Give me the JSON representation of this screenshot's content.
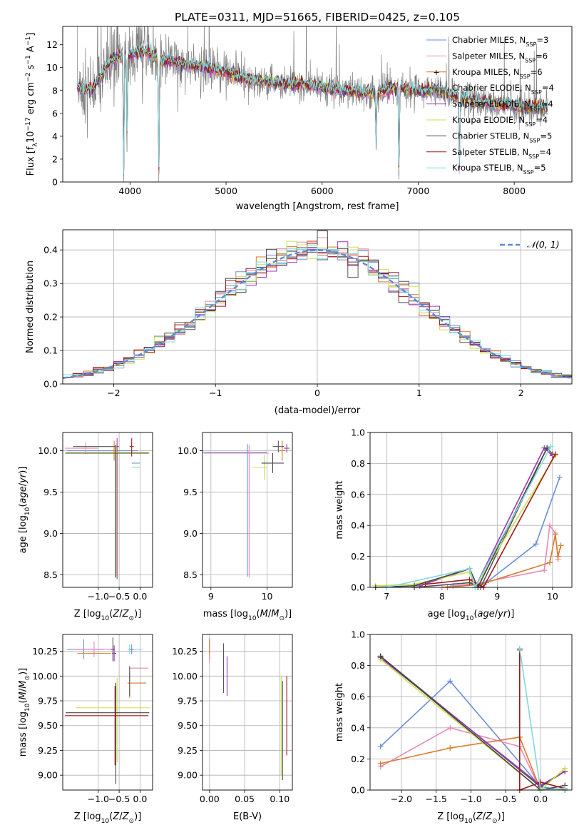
{
  "figure": {
    "title": "PLATE=0311, MJD=51665, FIBERID=0425, z=0.105"
  },
  "series_styles": [
    {
      "name": "Chabrier MILES",
      "nssp": "3",
      "color": "#6a8fd8"
    },
    {
      "name": "Salpeter MILES",
      "nssp": "6",
      "color": "#e889b8"
    },
    {
      "name": "Kroupa MILES",
      "nssp": "6",
      "color": "#d97a2b"
    },
    {
      "name": "Chabrier ELODIE",
      "nssp": "4",
      "color": "#555555"
    },
    {
      "name": "Salpeter ELODIE",
      "nssp": "4",
      "color": "#9b34b8"
    },
    {
      "name": "Kroupa ELODIE",
      "nssp": "4",
      "color": "#c8e04c"
    },
    {
      "name": "Chabrier STELIB",
      "nssp": "5",
      "color": "#444444"
    },
    {
      "name": "Salpeter STELIB",
      "nssp": "4",
      "color": "#a01818"
    },
    {
      "name": "Kroupa STELIB",
      "nssp": "5",
      "color": "#7fd8de"
    }
  ],
  "chart_data": [
    {
      "id": "spectrum",
      "type": "line",
      "xlabel": "wavelength [Angstrom, rest frame]",
      "ylabel_parts": [
        "Flux [f",
        "λ",
        "10",
        "−17",
        " erg cm",
        "−2",
        " s",
        "−1",
        " A",
        "−1",
        "]"
      ],
      "xlim": [
        3300,
        8600
      ],
      "ylim": [
        0,
        13.6
      ],
      "xticks": [
        4000,
        5000,
        6000,
        7000,
        8000
      ],
      "yticks": [
        0,
        2,
        4,
        6,
        8,
        10,
        12
      ],
      "legend": "top-right",
      "grid": false,
      "data_color": "#808080",
      "continuum_x": [
        3450,
        3600,
        3700,
        3800,
        3900,
        4000,
        4100,
        4200,
        4300,
        4400,
        4500,
        4600,
        4800,
        5000,
        5200,
        5400,
        5600,
        5800,
        6000,
        6200,
        6400,
        6600,
        6800,
        7000,
        7200,
        7400,
        7600,
        7800,
        8000,
        8200,
        8350
      ],
      "continuum_y": [
        8.3,
        8.0,
        9.3,
        10.6,
        11.0,
        11.1,
        11.4,
        11.3,
        10.6,
        10.6,
        10.4,
        10.2,
        10.0,
        9.6,
        9.0,
        8.8,
        8.6,
        8.5,
        8.3,
        8.0,
        7.8,
        7.9,
        8.3,
        7.9,
        8.0,
        7.5,
        7.0,
        6.8,
        6.7,
        6.5,
        6.5
      ],
      "absorption_lines": [
        {
          "x": 3934,
          "depth": 11.0
        },
        {
          "x": 3969,
          "depth": 8.0
        },
        {
          "x": 4300,
          "depth": 10.5
        },
        {
          "x": 6563,
          "depth": 4.5
        },
        {
          "x": 6800,
          "depth": 8.0
        },
        {
          "x": 7430,
          "depth": 7.0
        }
      ]
    },
    {
      "id": "residuals",
      "type": "step",
      "xlabel": "(data-model)/error",
      "ylabel": "Normed distribution",
      "xlim": [
        -2.5,
        2.5
      ],
      "ylim": [
        0,
        0.46
      ],
      "xticks": [
        -2,
        -1,
        0,
        1,
        2
      ],
      "yticks": [
        0.0,
        0.1,
        0.2,
        0.3,
        0.4
      ],
      "grid": true,
      "legend": "top-right",
      "normal_label": "𝒩(0, 1)",
      "normal_color": "#5a8ad8",
      "bin_width": 0.1
    },
    {
      "id": "age-vs-Z",
      "type": "errorbar",
      "xlabel": "Z [log10(Z/Z⊙)]",
      "ylabel": "age  [log10(age/yr)]",
      "xlim": [
        -1.85,
        0.3
      ],
      "ylim": [
        8.35,
        10.22
      ],
      "xticks": [
        -1,
        -0.5,
        0
      ],
      "yticks": [
        8.5,
        9.0,
        9.5,
        10.0
      ],
      "grid": true,
      "points": [
        {
          "x": -1.75,
          "y": 10.0,
          "xerr": [
            0,
            1.7
          ],
          "yerr": [
            0,
            0
          ]
        },
        {
          "x": -1.3,
          "y": 10.03,
          "xerr": [
            0.5,
            0.3
          ],
          "yerr": [
            0.07,
            0.07
          ]
        },
        {
          "x": -0.62,
          "y": 10.0,
          "xerr": [
            0.05,
            0.05
          ],
          "yerr": [
            0.12,
            0.12
          ]
        },
        {
          "x": -1.1,
          "y": 10.05,
          "xerr": [
            0.5,
            0.5
          ],
          "yerr": [
            0,
            0
          ]
        },
        {
          "x": -0.55,
          "y": 10.05,
          "xerr": [
            0.05,
            0.05
          ],
          "yerr": [
            1.6,
            0.1
          ]
        },
        {
          "x": -0.57,
          "y": 9.98,
          "xerr": [
            1.2,
            0.8
          ],
          "yerr": [
            1.5,
            0.1
          ]
        },
        {
          "x": -0.59,
          "y": 9.97,
          "xerr": [
            1.2,
            0.8
          ],
          "yerr": [
            1.5,
            0.1
          ]
        },
        {
          "x": -0.2,
          "y": 10.05,
          "xerr": [
            0.05,
            0.05
          ],
          "yerr": [
            0.12,
            0.1
          ]
        },
        {
          "x": -0.1,
          "y": 9.8,
          "xerr": [
            0.1,
            0.1
          ],
          "yerr": [
            0,
            0
          ]
        },
        {
          "x": -0.1,
          "y": 9.85,
          "xerr": [
            0.1,
            0.1
          ],
          "yerr": [
            0,
            0
          ]
        }
      ]
    },
    {
      "id": "age-vs-mass",
      "type": "errorbar",
      "xlabel": "mass [log10(M/M⊙)]",
      "ylabel": "",
      "xlim": [
        8.85,
        10.45
      ],
      "ylim": [
        8.35,
        10.22
      ],
      "xticks": [
        9,
        10
      ],
      "yticks": [
        8.5,
        9.0,
        9.5,
        10.0
      ],
      "grid": true,
      "points": [
        {
          "x": 9.65,
          "y": 9.98,
          "xerr": [
            0.8,
            0.35
          ],
          "yerr": [
            1.5,
            0.1
          ]
        },
        {
          "x": 9.68,
          "y": 9.97,
          "xerr": [
            0.8,
            0.35
          ],
          "yerr": [
            1.5,
            0.1
          ]
        },
        {
          "x": 10.27,
          "y": 10.0,
          "xerr": [
            0.05,
            0.05
          ],
          "yerr": [
            0.12,
            0.12
          ]
        },
        {
          "x": 10.2,
          "y": 10.05,
          "xerr": [
            0.1,
            0.1
          ],
          "yerr": [
            0.07,
            0.07
          ]
        },
        {
          "x": 10.35,
          "y": 10.03,
          "xerr": [
            0.05,
            0.05
          ],
          "yerr": [
            0.05,
            0.05
          ]
        },
        {
          "x": 9.95,
          "y": 9.8,
          "xerr": [
            0.2,
            0.05
          ],
          "yerr": [
            0.15,
            0.15
          ]
        },
        {
          "x": 10.1,
          "y": 9.85,
          "xerr": [
            0.2,
            0.2
          ],
          "yerr": [
            0.12,
            0.12
          ]
        }
      ]
    },
    {
      "id": "weight-vs-age",
      "type": "line",
      "xlabel": "age  [log10(age/yr)]",
      "ylabel": "mass weight",
      "xlim": [
        6.7,
        10.35
      ],
      "ylim": [
        0,
        1.0
      ],
      "xticks": [
        7,
        8,
        9,
        10
      ],
      "yticks": [
        0.0,
        0.2,
        0.4,
        0.6,
        0.8,
        1.0
      ],
      "grid": true,
      "series": [
        {
          "style": 0,
          "x": [
            8.2,
            8.8,
            9.7,
            10.13
          ],
          "y": [
            0.01,
            0.03,
            0.28,
            0.71
          ]
        },
        {
          "style": 1,
          "x": [
            8.0,
            8.7,
            9.85,
            9.95,
            10.05,
            10.1
          ],
          "y": [
            0.0,
            0.03,
            0.11,
            0.4,
            0.35,
            0.18
          ]
        },
        {
          "style": 2,
          "x": [
            8.1,
            8.7,
            9.95,
            10.05,
            10.1,
            10.15
          ],
          "y": [
            0.0,
            0.02,
            0.16,
            0.34,
            0.2,
            0.27
          ]
        },
        {
          "style": 3,
          "x": [
            7.5,
            8.5,
            8.7,
            9.9,
            10.0
          ],
          "y": [
            0.0,
            0.03,
            0.0,
            0.9,
            0.86
          ]
        },
        {
          "style": 4,
          "x": [
            7.6,
            8.5,
            8.6,
            9.85,
            10.0
          ],
          "y": [
            0.01,
            0.12,
            0.0,
            0.9,
            0.85
          ]
        },
        {
          "style": 5,
          "x": [
            6.8,
            7.5,
            8.5,
            8.6,
            10.05
          ],
          "y": [
            0.01,
            0.02,
            0.1,
            0.0,
            0.85
          ]
        },
        {
          "style": 6,
          "x": [
            6.8,
            7.5,
            8.5,
            8.65,
            9.9
          ],
          "y": [
            0.0,
            0.01,
            0.12,
            0.0,
            0.9
          ]
        },
        {
          "style": 7,
          "x": [
            7.7,
            8.5,
            8.75,
            10.05
          ],
          "y": [
            0.02,
            0.05,
            0.0,
            0.86
          ]
        },
        {
          "style": 8,
          "x": [
            7.0,
            8.5,
            8.6,
            9.97
          ],
          "y": [
            0.0,
            0.12,
            0.0,
            0.91
          ]
        }
      ]
    },
    {
      "id": "mass-vs-Z",
      "type": "errorbar",
      "xlabel": "Z [log10(Z/Z⊙)]",
      "ylabel": "mass [log10(M/M⊙)]",
      "xlim": [
        -1.85,
        0.3
      ],
      "ylim": [
        8.85,
        10.42
      ],
      "xticks": [
        -1,
        -0.5,
        0
      ],
      "yticks": [
        9.0,
        9.25,
        9.5,
        9.75,
        10.0,
        10.25
      ],
      "grid": true,
      "points": [
        {
          "x": -1.35,
          "y": 10.27,
          "xerr": [
            0.4,
            0.5
          ],
          "yerr": [
            0.1,
            0.1
          ]
        },
        {
          "x": -1.1,
          "y": 10.27,
          "xerr": [
            0.5,
            0.5
          ],
          "yerr": [
            0.08,
            0.08
          ]
        },
        {
          "x": -1.1,
          "y": 10.23,
          "xerr": [
            0.4,
            0.4
          ],
          "yerr": [
            0,
            0
          ]
        },
        {
          "x": -0.65,
          "y": 10.27,
          "xerr": [
            0.05,
            0.05
          ],
          "yerr": [
            0.12,
            0.12
          ]
        },
        {
          "x": -0.62,
          "y": 10.23,
          "xerr": [
            0.05,
            0.05
          ],
          "yerr": [
            0.08,
            0.08
          ]
        },
        {
          "x": -0.55,
          "y": 9.68,
          "xerr": [
            1.0,
            0.8
          ],
          "yerr": [
            0.55,
            0.3
          ]
        },
        {
          "x": -0.58,
          "y": 9.63,
          "xerr": [
            1.2,
            0.8
          ],
          "yerr": [
            0.72,
            0.3
          ]
        },
        {
          "x": -0.6,
          "y": 9.6,
          "xerr": [
            1.2,
            0.8
          ],
          "yerr": [
            0.5,
            0.3
          ]
        },
        {
          "x": -0.25,
          "y": 10.27,
          "xerr": [
            0.05,
            0.3
          ],
          "yerr": [
            0.05,
            0.05
          ]
        },
        {
          "x": -0.2,
          "y": 10.27,
          "xerr": [
            0.05,
            0.05
          ],
          "yerr": [
            0.05,
            0.05
          ]
        },
        {
          "x": -0.2,
          "y": 10.08,
          "xerr": [
            0.05,
            0.4
          ],
          "yerr": [
            0,
            0
          ]
        },
        {
          "x": -0.25,
          "y": 9.93,
          "xerr": [
            0.05,
            0.4
          ],
          "yerr": [
            0.15,
            0.1
          ]
        },
        {
          "x": -0.25,
          "y": 10.0,
          "xerr": [
            0,
            0
          ],
          "yerr": [
            0.2,
            0.1
          ]
        }
      ]
    },
    {
      "id": "mass-vs-EBV",
      "type": "errorbar",
      "xlabel": "E(B-V)",
      "ylabel": "",
      "xlim": [
        -0.01,
        0.118
      ],
      "ylim": [
        8.85,
        10.42
      ],
      "xticks": [
        0.0,
        0.05,
        0.1
      ],
      "yticks": [
        9.0,
        9.25,
        9.5,
        9.75,
        10.0,
        10.25
      ],
      "grid": true,
      "points": [
        {
          "x": 0.0,
          "y": 10.27,
          "xerr": [
            0,
            0
          ],
          "yerr": [
            0.1,
            0.1
          ]
        },
        {
          "x": 0.0,
          "y": 10.23,
          "xerr": [
            0,
            0
          ],
          "yerr": [
            0.1,
            0.1
          ]
        },
        {
          "x": 0.0,
          "y": 10.3,
          "xerr": [
            0,
            0
          ],
          "yerr": [
            0.08,
            0.08
          ]
        },
        {
          "x": 0.02,
          "y": 10.08,
          "xerr": [
            0,
            0
          ],
          "yerr": [
            0.25,
            0.25
          ]
        },
        {
          "x": 0.025,
          "y": 10.0,
          "xerr": [
            0,
            0
          ],
          "yerr": [
            0.2,
            0.2
          ]
        },
        {
          "x": 0.102,
          "y": 9.5,
          "xerr": [
            0,
            0
          ],
          "yerr": [
            0.5,
            0.5
          ]
        },
        {
          "x": 0.104,
          "y": 9.45,
          "xerr": [
            0,
            0
          ],
          "yerr": [
            0.5,
            0.5
          ]
        },
        {
          "x": 0.11,
          "y": 9.6,
          "xerr": [
            0,
            0
          ],
          "yerr": [
            0.4,
            0.4
          ]
        }
      ]
    },
    {
      "id": "weight-vs-Z",
      "type": "line",
      "xlabel": "Z [log10(Z/Z⊙)]",
      "ylabel": "mass weight",
      "xlim": [
        -2.45,
        0.45
      ],
      "ylim": [
        0,
        1.0
      ],
      "xticks": [
        -2.0,
        -1.5,
        -1.0,
        -0.5,
        0.0
      ],
      "yticks": [
        0.0,
        0.2,
        0.4,
        0.6,
        0.8,
        1.0
      ],
      "grid": true,
      "series": [
        {
          "style": 0,
          "x": [
            -2.3,
            -1.3,
            0.0,
            0.35
          ],
          "y": [
            0.28,
            0.7,
            0.02,
            0.0
          ]
        },
        {
          "style": 1,
          "x": [
            -2.3,
            -1.3,
            -0.3,
            0.0,
            0.35
          ],
          "y": [
            0.15,
            0.4,
            0.28,
            0.0,
            0.01
          ]
        },
        {
          "style": 2,
          "x": [
            -2.3,
            -1.3,
            -0.3,
            0.0,
            0.35
          ],
          "y": [
            0.17,
            0.27,
            0.34,
            0.0,
            0.0
          ]
        },
        {
          "style": 3,
          "x": [
            -2.3,
            0.0,
            0.35
          ],
          "y": [
            0.86,
            0.02,
            0.12
          ]
        },
        {
          "style": 4,
          "x": [
            -2.3,
            0.0,
            0.35
          ],
          "y": [
            0.85,
            0.03,
            0.12
          ]
        },
        {
          "style": 5,
          "x": [
            -2.3,
            0.0,
            0.35
          ],
          "y": [
            0.84,
            0.0,
            0.14
          ]
        },
        {
          "style": 6,
          "x": [
            -2.3,
            0.0,
            0.35
          ],
          "y": [
            0.86,
            0.0,
            0.03
          ]
        },
        {
          "style": 7,
          "x": [
            -0.3,
            -0.3,
            0.0,
            0.35
          ],
          "y": [
            0.9,
            0.0,
            0.05,
            0.01
          ]
        },
        {
          "style": 8,
          "x": [
            -0.3,
            0.0,
            0.35
          ],
          "y": [
            0.91,
            0.0,
            0.01
          ]
        }
      ]
    }
  ]
}
